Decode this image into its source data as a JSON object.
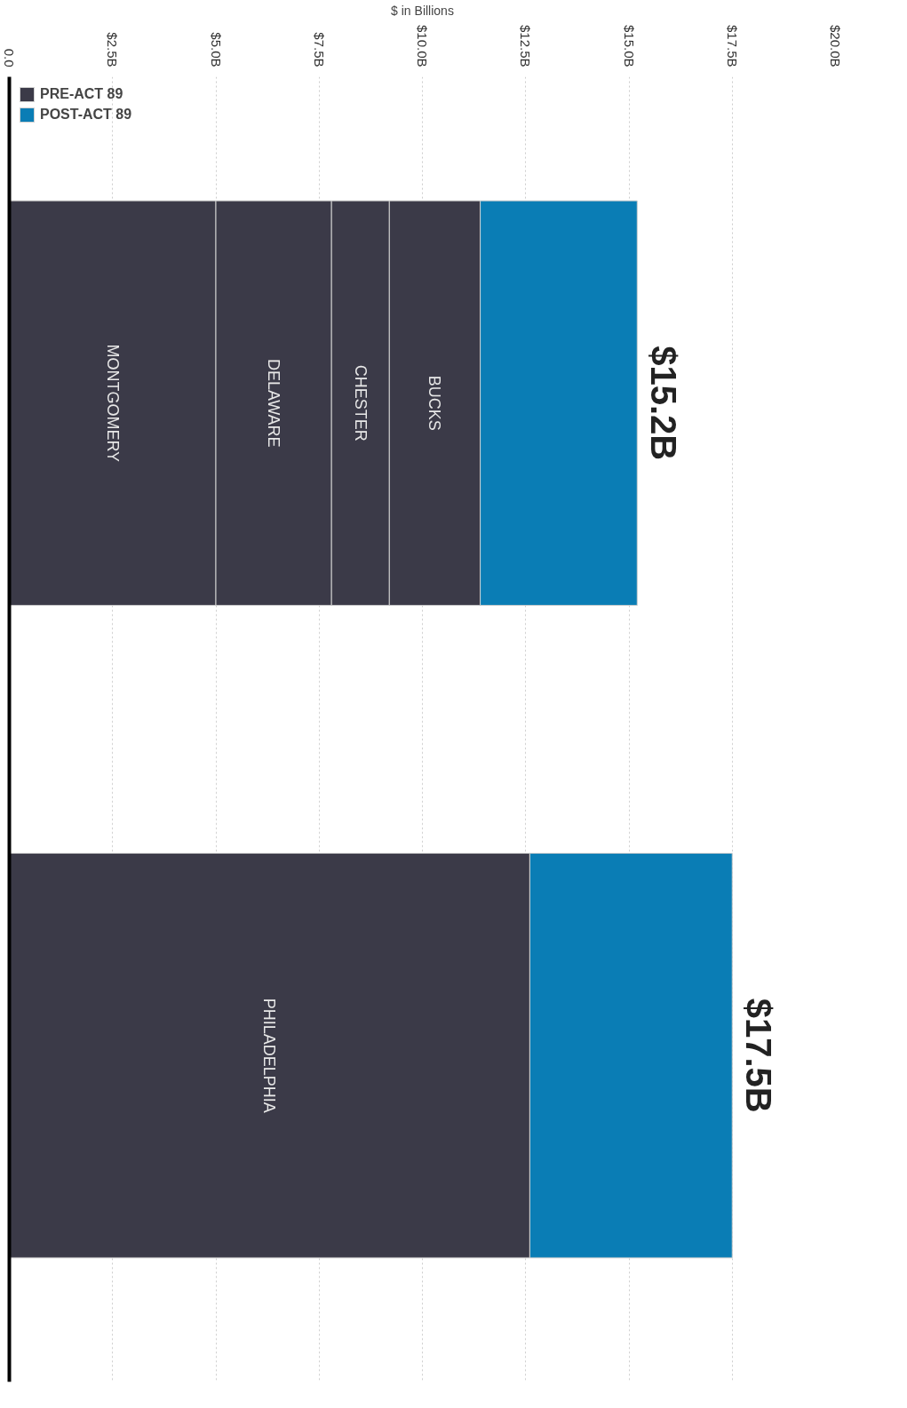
{
  "chart_data": {
    "type": "bar",
    "orientation": "horizontal",
    "stacked": true,
    "categories": [
      null,
      null
    ],
    "xlabel": "$ in Billions",
    "xlim": [
      0,
      20
    ],
    "xticks": [
      {
        "value": 0,
        "label": "0.0"
      },
      {
        "value": 2.5,
        "label": "$2.5B"
      },
      {
        "value": 5,
        "label": "$5.0B"
      },
      {
        "value": 7.5,
        "label": "$7.5B"
      },
      {
        "value": 10,
        "label": "$10.0B"
      },
      {
        "value": 12.5,
        "label": "$12.5B"
      },
      {
        "value": 15,
        "label": "$15.0B"
      },
      {
        "value": 17.5,
        "label": "$17.5B"
      },
      {
        "value": 20,
        "label": "$20.0B"
      }
    ],
    "series": [
      {
        "name": "PRE-ACT 89",
        "color": "#3b3a48",
        "values": [
          5.0,
          12.6
        ],
        "value_labels": [
          "MONTGOMERY",
          "PHILADELPHIA"
        ]
      },
      {
        "color": "#3b3a48",
        "values": [
          2.8,
          null
        ],
        "value_labels": [
          "DELAWARE",
          null
        ]
      },
      {
        "color": "#3b3a48",
        "values": [
          1.4,
          null
        ],
        "value_labels": [
          "CHESTER",
          null
        ]
      },
      {
        "color": "#3b3a48",
        "values": [
          2.2,
          null
        ],
        "value_labels": [
          "BUCKS",
          null
        ]
      },
      {
        "name": "POST-ACT 89",
        "color": "#0a7db5",
        "values": [
          3.8,
          4.9
        ]
      }
    ],
    "totals": [
      "$15.2B",
      "$17.5B"
    ],
    "grid": "x",
    "legend": "left"
  }
}
